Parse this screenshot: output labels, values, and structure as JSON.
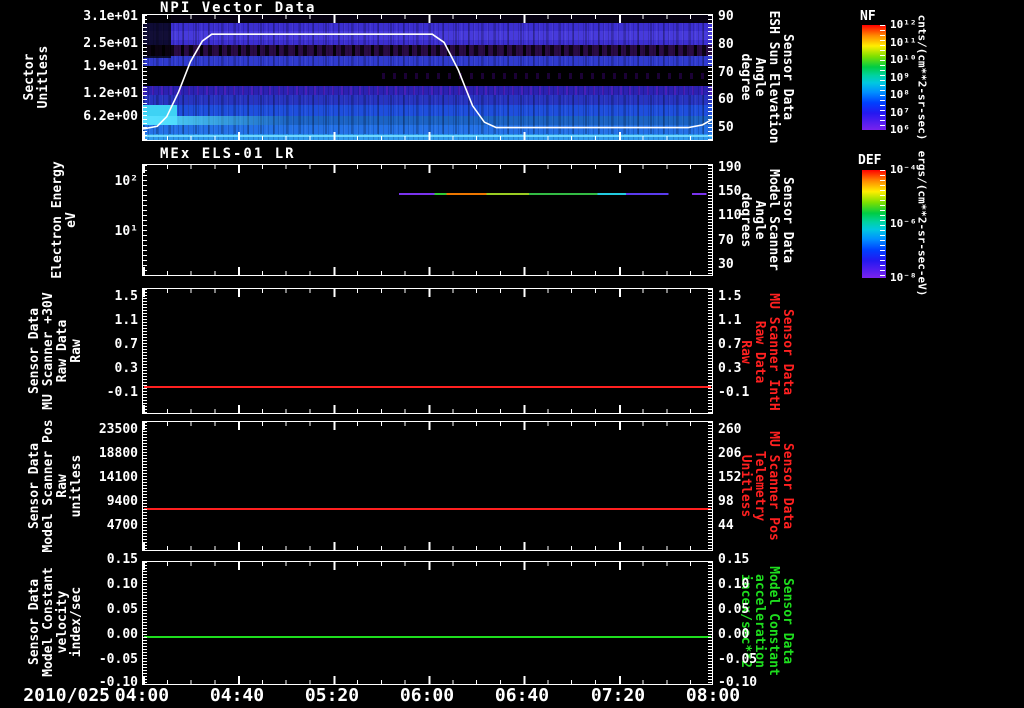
{
  "window": {
    "background": "#000000",
    "frame_color": "#ffffff"
  },
  "panel1": {
    "title": "NPI Vector Data",
    "ylabel": "Sector\nUnitless",
    "yticks": [
      "3.1e+01",
      "2.5e+01",
      "1.9e+01",
      "1.2e+01",
      "6.2e+00"
    ],
    "right_ticks": [
      "90",
      "80",
      "70",
      "60",
      "50"
    ],
    "right_label": "Sensor Data\nESH Sun Elevation\nAngle\ndegree"
  },
  "panel2": {
    "title": "MEx ELS-01 LR",
    "ylabel": "Electron Energy\neV",
    "yticks": [
      "10²",
      "10¹"
    ],
    "right_ticks": [
      "190",
      "150",
      "110",
      "70",
      "30"
    ],
    "right_label": "Sensor Data\nModel Scanner\nAngle\ndegrees"
  },
  "panel3": {
    "ylabel": "Sensor Data\nMU Scanner +30V\nRaw Data\nRaw",
    "yticks": [
      "1.5",
      "1.1",
      "0.7",
      "0.3",
      "-0.1"
    ],
    "right_ticks": [
      "1.5",
      "1.1",
      "0.7",
      "0.3",
      "-0.1"
    ],
    "right_label": "Sensor Data\nMU Scanner IntH\nRaw Data\nRaw"
  },
  "panel4": {
    "ylabel": "Sensor Data\nModel Scanner Pos\nRaw\nunitless",
    "yticks": [
      "23500",
      "18800",
      "14100",
      "9400",
      "4700"
    ],
    "right_ticks": [
      "260",
      "206",
      "152",
      "98",
      "44"
    ],
    "right_label": "Sensor Data\nMU Scanner Pos\nTelemetry\nUnitless"
  },
  "panel5": {
    "ylabel": "Sensor Data\nModel Constant\nvelocity\nindex/sec",
    "yticks": [
      "0.15",
      "0.10",
      "0.05",
      "0.00",
      "-0.05",
      "-0.10"
    ],
    "right_ticks": [
      "0.15",
      "0.10",
      "0.05",
      "0.00",
      "-0.05",
      "-0.10"
    ],
    "right_label": "Sensor Data\nModel Constant\nacceleration\nincex/sec**2"
  },
  "xaxis": {
    "date_label": "2010/025",
    "ticks": [
      "04:00",
      "04:40",
      "05:20",
      "06:00",
      "06:40",
      "07:20",
      "08:00"
    ]
  },
  "colorbar_nf": {
    "name": "NF",
    "ticks": [
      "10¹²",
      "10¹¹",
      "10¹⁰",
      "10⁹",
      "10⁸",
      "10⁷",
      "10⁶"
    ],
    "units": "cnts/(cm**2-sr-sec)"
  },
  "colorbar_def": {
    "name": "DEF",
    "ticks": [
      "10⁻⁴",
      "10⁻⁶",
      "10⁻⁸"
    ],
    "units": "ergs/(cm**2-sr-sec-eV)"
  },
  "chart_data": [
    {
      "panel": "NPI Vector Data",
      "type": "heatmap",
      "xlim": [
        "04:00",
        "08:00"
      ],
      "x_date": "2010/025",
      "ylabel": "Sector Unitless",
      "ytick_values": [
        31,
        25,
        19,
        12,
        6.2
      ],
      "right_axis": {
        "label": "Sensor Data ESH Sun Elevation Angle degree",
        "ticks": [
          90,
          80,
          70,
          60,
          50
        ]
      },
      "colorbar": {
        "name": "NF",
        "units": "cnts/(cm**2-sr-sec)",
        "ticks_log10": [
          12,
          11,
          10,
          9,
          8,
          7,
          6
        ]
      },
      "overlay_line": {
        "name": "ESH Sun Elevation Angle",
        "color": "#ffffff",
        "ylim": [
          45.5,
          91
        ],
        "points_min_deg": [
          [
            0,
            49.5
          ],
          [
            6,
            50.5
          ],
          [
            10,
            54
          ],
          [
            15,
            63
          ],
          [
            20,
            74
          ],
          [
            25,
            81.5
          ],
          [
            29,
            84
          ],
          [
            122,
            84
          ],
          [
            127,
            81
          ],
          [
            133,
            71
          ],
          [
            139,
            58
          ],
          [
            144,
            52
          ],
          [
            149,
            50
          ],
          [
            230,
            50
          ],
          [
            236,
            51
          ],
          [
            240,
            53
          ]
        ]
      },
      "bands": [
        {
          "top": 0,
          "h": 6,
          "color": "#060112",
          "tex": ""
        },
        {
          "top": 6,
          "h": 7,
          "color": "#3b2ed2",
          "tex": "tex-noise"
        },
        {
          "top": 13,
          "h": 7,
          "color": "#473adc",
          "tex": "tex-noise"
        },
        {
          "top": 20,
          "h": 4,
          "color": "#3b2ed2",
          "tex": "tex-noise"
        },
        {
          "top": 24,
          "h": 9,
          "color": "#2a0b46",
          "tex": "tex-blackspeckle"
        },
        {
          "top": 33,
          "h": 8,
          "color": "#2f3ad0",
          "tex": "tex-noise"
        },
        {
          "top": 41,
          "h": 16,
          "color": "#000000",
          "tex": ""
        },
        {
          "top": 57,
          "h": 7,
          "color": "#2b21b2",
          "tex": "tex-purplespeckle"
        },
        {
          "top": 64,
          "h": 8,
          "color": "#2734c2",
          "tex": "tex-noise"
        },
        {
          "top": 72,
          "h": 9,
          "color": "#1e4ede",
          "tex": "tex-noise"
        },
        {
          "top": 81,
          "h": 7,
          "color": "#1b63c6",
          "tex": "tex-noise"
        },
        {
          "top": 88,
          "h": 7,
          "color": "#2371e8",
          "tex": "tex-noise"
        },
        {
          "top": 95,
          "h": 5,
          "color": "#2e9af0",
          "tex": ""
        }
      ]
    },
    {
      "panel": "MEx ELS-01 LR",
      "type": "heatmap",
      "xlim": [
        "04:00",
        "08:00"
      ],
      "ylabel": "Electron Energy eV",
      "yscale": "log",
      "ytick_values": [
        100,
        10
      ],
      "right_axis": {
        "label": "Sensor Data Model Scanner Angle degrees",
        "ticks": [
          190,
          150,
          110,
          70,
          30
        ]
      },
      "colorbar": {
        "name": "DEF",
        "units": "ergs/(cm**2-sr-sec-eV)",
        "ticks_log10": [
          -4,
          -6,
          -8
        ]
      },
      "trace": {
        "energy_eV": 60,
        "segments_min": [
          [
            108,
            123,
            "#7a33ee"
          ],
          [
            123,
            128,
            "#33cc33"
          ],
          [
            128,
            145,
            "#ee7700"
          ],
          [
            145,
            163,
            "#9acc22"
          ],
          [
            163,
            192,
            "#33bb44"
          ],
          [
            192,
            204,
            "#22cbe0"
          ],
          [
            204,
            222,
            "#5a3bee"
          ],
          [
            232,
            238,
            "#7a33ee"
          ]
        ]
      }
    },
    {
      "panel": "Sensor Data MU Scanner +30V Raw Data Raw",
      "type": "line",
      "color": "#ff2020",
      "ylim": [
        -0.49,
        1.65
      ],
      "value": -0.02,
      "ytick_values": [
        1.5,
        1.1,
        0.7,
        0.3,
        -0.1
      ]
    },
    {
      "panel": "Sensor Data Model Scanner Pos Raw unitless",
      "type": "line",
      "color": "#ff2020",
      "ylim": [
        -200,
        24200
      ],
      "value": 7900,
      "ytick_values": [
        23500,
        18800,
        14100,
        9400,
        4700
      ],
      "right_tick_values": [
        260,
        206,
        152,
        98,
        44
      ]
    },
    {
      "panel": "Sensor Data Model Constant velocity index/sec",
      "type": "line",
      "color": "#1ede1e",
      "ylim": [
        -0.103,
        0.158
      ],
      "value": 0.0,
      "ytick_values": [
        0.15,
        0.1,
        0.05,
        0.0,
        -0.05,
        -0.1
      ]
    }
  ]
}
